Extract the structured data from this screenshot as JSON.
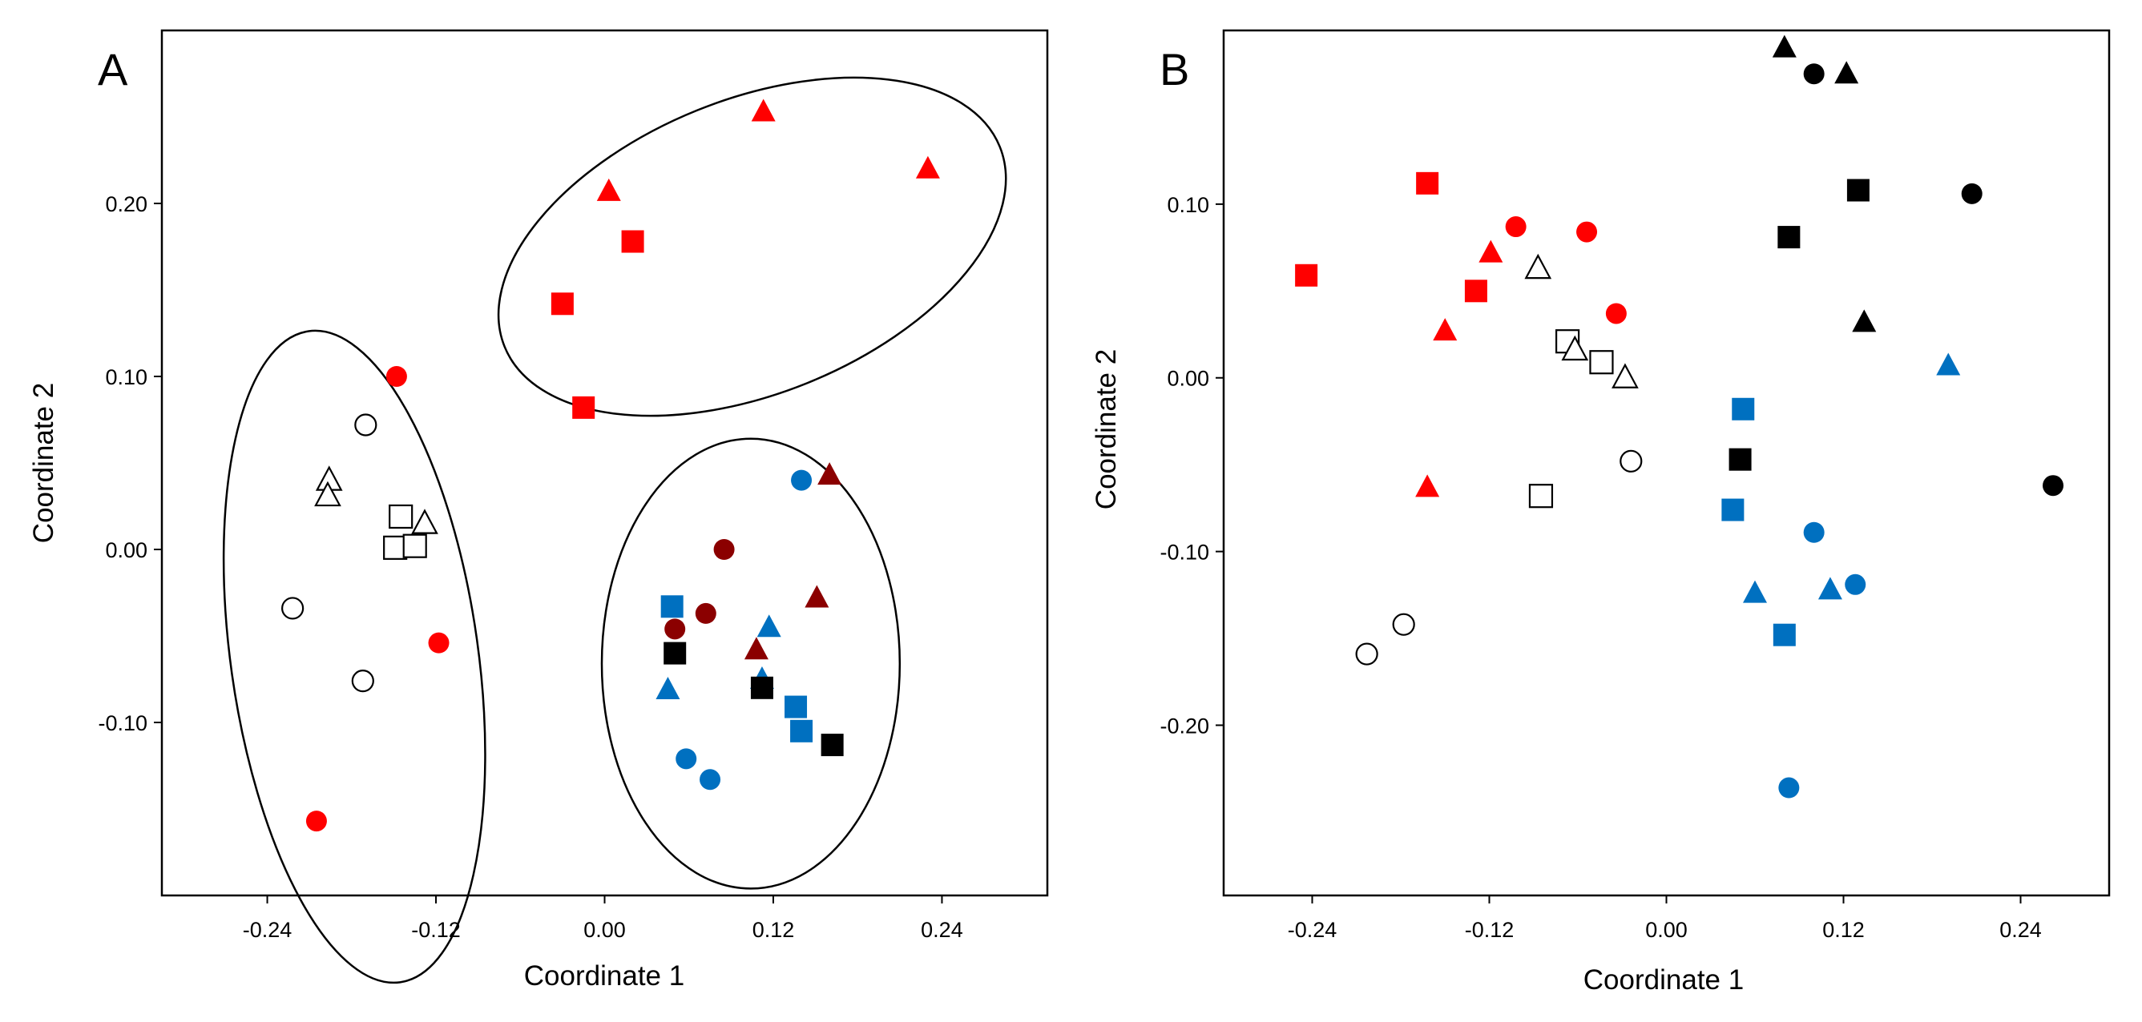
{
  "figure": {
    "panels": [
      "A",
      "B"
    ]
  },
  "colors": {
    "red": "#ff0000",
    "blue": "#0070c0",
    "darkred": "#8b0000",
    "black": "#000000",
    "open": "#ffffff"
  },
  "chart_data": [
    {
      "type": "scatter",
      "panel_label": "A",
      "xlabel": "Coordinate  1",
      "ylabel": "Coordinate  2",
      "xlim": [
        -0.315,
        0.315
      ],
      "ylim": [
        -0.2,
        0.3
      ],
      "xticks": [
        -0.24,
        -0.12,
        0.0,
        0.12,
        0.24
      ],
      "yticks": [
        -0.1,
        0.0,
        0.1,
        0.2
      ],
      "xtick_labels": [
        "-0.24",
        "-0.12",
        "0.00",
        "0.12",
        "0.24"
      ],
      "ytick_labels": [
        "-0.10",
        "0.00",
        "0.10",
        "0.20"
      ],
      "grid": false,
      "points": [
        {
          "x": 0.113,
          "y": 0.253,
          "shape": "triangle",
          "color": "red"
        },
        {
          "x": 0.23,
          "y": 0.22,
          "shape": "triangle",
          "color": "red"
        },
        {
          "x": 0.003,
          "y": 0.207,
          "shape": "triangle",
          "color": "red"
        },
        {
          "x": 0.02,
          "y": 0.178,
          "shape": "square",
          "color": "red"
        },
        {
          "x": -0.03,
          "y": 0.142,
          "shape": "square",
          "color": "red"
        },
        {
          "x": -0.015,
          "y": 0.082,
          "shape": "square",
          "color": "red"
        },
        {
          "x": -0.148,
          "y": 0.1,
          "shape": "circle",
          "color": "red"
        },
        {
          "x": -0.17,
          "y": 0.072,
          "shape": "circle",
          "color": "open"
        },
        {
          "x": -0.196,
          "y": 0.04,
          "shape": "triangle",
          "color": "open"
        },
        {
          "x": -0.197,
          "y": 0.031,
          "shape": "triangle",
          "color": "open"
        },
        {
          "x": -0.145,
          "y": 0.019,
          "shape": "square",
          "color": "open"
        },
        {
          "x": -0.128,
          "y": 0.015,
          "shape": "triangle",
          "color": "open"
        },
        {
          "x": -0.149,
          "y": 0.001,
          "shape": "square",
          "color": "open"
        },
        {
          "x": -0.135,
          "y": 0.002,
          "shape": "square",
          "color": "open"
        },
        {
          "x": -0.222,
          "y": -0.034,
          "shape": "circle",
          "color": "open"
        },
        {
          "x": -0.118,
          "y": -0.054,
          "shape": "circle",
          "color": "red"
        },
        {
          "x": -0.172,
          "y": -0.076,
          "shape": "circle",
          "color": "open"
        },
        {
          "x": -0.205,
          "y": -0.157,
          "shape": "circle",
          "color": "red"
        },
        {
          "x": 0.14,
          "y": 0.04,
          "shape": "circle",
          "color": "blue"
        },
        {
          "x": 0.16,
          "y": 0.043,
          "shape": "triangle",
          "color": "darkred"
        },
        {
          "x": 0.085,
          "y": 0.0,
          "shape": "circle",
          "color": "darkred"
        },
        {
          "x": 0.048,
          "y": -0.033,
          "shape": "square",
          "color": "blue"
        },
        {
          "x": 0.151,
          "y": -0.028,
          "shape": "triangle",
          "color": "darkred"
        },
        {
          "x": 0.072,
          "y": -0.037,
          "shape": "circle",
          "color": "darkred"
        },
        {
          "x": 0.05,
          "y": -0.046,
          "shape": "circle",
          "color": "darkred"
        },
        {
          "x": 0.117,
          "y": -0.045,
          "shape": "triangle",
          "color": "blue"
        },
        {
          "x": 0.05,
          "y": -0.06,
          "shape": "square",
          "color": "black"
        },
        {
          "x": 0.108,
          "y": -0.058,
          "shape": "triangle",
          "color": "darkred"
        },
        {
          "x": 0.112,
          "y": -0.075,
          "shape": "triangle",
          "color": "blue"
        },
        {
          "x": 0.045,
          "y": -0.081,
          "shape": "triangle",
          "color": "blue"
        },
        {
          "x": 0.112,
          "y": -0.08,
          "shape": "square",
          "color": "black"
        },
        {
          "x": 0.136,
          "y": -0.091,
          "shape": "square",
          "color": "blue"
        },
        {
          "x": 0.14,
          "y": -0.105,
          "shape": "square",
          "color": "blue"
        },
        {
          "x": 0.162,
          "y": -0.113,
          "shape": "square",
          "color": "black"
        },
        {
          "x": 0.058,
          "y": -0.121,
          "shape": "circle",
          "color": "blue"
        },
        {
          "x": 0.075,
          "y": -0.133,
          "shape": "circle",
          "color": "blue"
        }
      ],
      "ellipses": [
        {
          "name": "red-cluster-ellipse",
          "cx": 0.105,
          "cy": 0.175,
          "rx": 0.19,
          "ry": 0.085,
          "angle": 22
        },
        {
          "name": "left-cluster-ellipse",
          "cx": -0.178,
          "cy": -0.062,
          "rx": 0.088,
          "ry": 0.19,
          "angle": 8
        },
        {
          "name": "right-cluster-ellipse",
          "cx": 0.104,
          "cy": -0.066,
          "rx": 0.106,
          "ry": 0.13,
          "angle": 0
        }
      ]
    },
    {
      "type": "scatter",
      "panel_label": "B",
      "xlabel": "Coordinate  1",
      "ylabel": "Coordinate  2",
      "xlim": [
        -0.3,
        0.3
      ],
      "ylim": [
        -0.298,
        0.2
      ],
      "xticks": [
        -0.24,
        -0.12,
        0.0,
        0.12,
        0.24
      ],
      "yticks": [
        -0.2,
        -0.1,
        0.0,
        0.1
      ],
      "xtick_labels": [
        "-0.24",
        "-0.12",
        "0.00",
        "0.12",
        "0.24"
      ],
      "ytick_labels": [
        "-0.20",
        "-0.10",
        "0.00",
        "0.10"
      ],
      "grid": false,
      "points": [
        {
          "x": 0.08,
          "y": 0.19,
          "shape": "triangle",
          "color": "black"
        },
        {
          "x": 0.1,
          "y": 0.175,
          "shape": "circle",
          "color": "black"
        },
        {
          "x": 0.122,
          "y": 0.175,
          "shape": "triangle",
          "color": "black"
        },
        {
          "x": 0.13,
          "y": 0.108,
          "shape": "square",
          "color": "black"
        },
        {
          "x": 0.207,
          "y": 0.106,
          "shape": "circle",
          "color": "black"
        },
        {
          "x": 0.083,
          "y": 0.081,
          "shape": "square",
          "color": "black"
        },
        {
          "x": 0.134,
          "y": 0.032,
          "shape": "triangle",
          "color": "black"
        },
        {
          "x": 0.262,
          "y": -0.062,
          "shape": "circle",
          "color": "black"
        },
        {
          "x": -0.162,
          "y": 0.112,
          "shape": "square",
          "color": "red"
        },
        {
          "x": -0.102,
          "y": 0.087,
          "shape": "circle",
          "color": "red"
        },
        {
          "x": -0.054,
          "y": 0.084,
          "shape": "circle",
          "color": "red"
        },
        {
          "x": -0.119,
          "y": 0.072,
          "shape": "triangle",
          "color": "red"
        },
        {
          "x": -0.244,
          "y": 0.059,
          "shape": "square",
          "color": "red"
        },
        {
          "x": -0.129,
          "y": 0.05,
          "shape": "square",
          "color": "red"
        },
        {
          "x": -0.034,
          "y": 0.037,
          "shape": "circle",
          "color": "red"
        },
        {
          "x": -0.15,
          "y": 0.027,
          "shape": "triangle",
          "color": "red"
        },
        {
          "x": -0.162,
          "y": -0.063,
          "shape": "triangle",
          "color": "red"
        },
        {
          "x": -0.087,
          "y": 0.063,
          "shape": "triangle",
          "color": "open"
        },
        {
          "x": -0.067,
          "y": 0.021,
          "shape": "square",
          "color": "open"
        },
        {
          "x": -0.062,
          "y": 0.016,
          "shape": "triangle",
          "color": "open"
        },
        {
          "x": -0.044,
          "y": 0.009,
          "shape": "square",
          "color": "open"
        },
        {
          "x": -0.028,
          "y": 0.0,
          "shape": "triangle",
          "color": "open"
        },
        {
          "x": -0.024,
          "y": -0.048,
          "shape": "circle",
          "color": "open"
        },
        {
          "x": -0.085,
          "y": -0.068,
          "shape": "square",
          "color": "open"
        },
        {
          "x": -0.178,
          "y": -0.142,
          "shape": "circle",
          "color": "open"
        },
        {
          "x": -0.203,
          "y": -0.159,
          "shape": "circle",
          "color": "open"
        },
        {
          "x": 0.052,
          "y": -0.018,
          "shape": "square",
          "color": "blue"
        },
        {
          "x": 0.05,
          "y": -0.047,
          "shape": "square",
          "color": "black"
        },
        {
          "x": 0.045,
          "y": -0.076,
          "shape": "square",
          "color": "blue"
        },
        {
          "x": 0.1,
          "y": -0.089,
          "shape": "circle",
          "color": "blue"
        },
        {
          "x": 0.191,
          "y": 0.007,
          "shape": "triangle",
          "color": "blue"
        },
        {
          "x": 0.06,
          "y": -0.124,
          "shape": "triangle",
          "color": "blue"
        },
        {
          "x": 0.111,
          "y": -0.122,
          "shape": "triangle",
          "color": "blue"
        },
        {
          "x": 0.128,
          "y": -0.119,
          "shape": "circle",
          "color": "blue"
        },
        {
          "x": 0.08,
          "y": -0.148,
          "shape": "square",
          "color": "blue"
        },
        {
          "x": 0.083,
          "y": -0.236,
          "shape": "circle",
          "color": "blue"
        }
      ]
    }
  ]
}
